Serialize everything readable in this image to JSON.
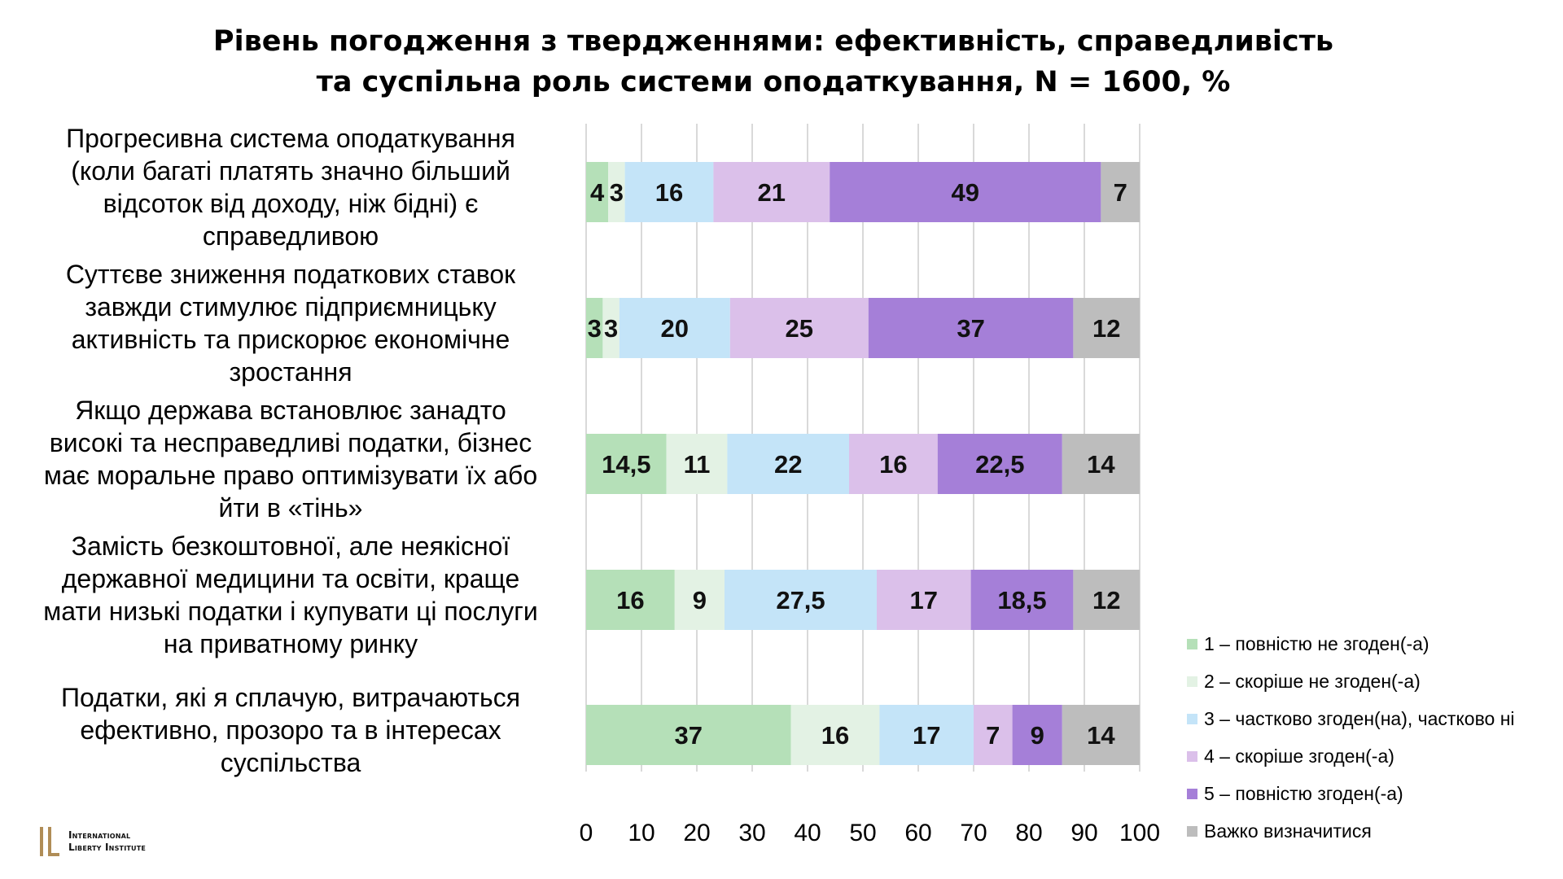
{
  "chart_data": {
    "type": "bar",
    "orientation": "horizontal",
    "stacked": true,
    "title_lines": [
      "Рівень погодження з твердженнями: ефективність, справедливість",
      "та суспільна роль системи оподаткування, N = 1600, %"
    ],
    "categories": [
      [
        "Прогресивна система оподаткування",
        "(коли багаті платять значно більший",
        "відсоток від доходу, ніж бідні) є",
        "справедливою"
      ],
      [
        "Суттєве зниження податкових ставок",
        "завжди стимулює підприємницьку",
        "активність та прискорює економічне",
        "зростання"
      ],
      [
        "Якщо держава встановлює занадто",
        "високі та несправедливі податки, бізнес",
        "має моральне право оптимізувати їх або",
        "йти в «тінь»"
      ],
      [
        "Замість безкоштовної, але неякісної",
        "державної медицини та освіти, краще",
        "мати низькі податки і купувати ці послуги",
        "на приватному ринку"
      ],
      [
        "Податки, які я сплачую, витрачаються",
        "ефективно, прозоро та в інтересах",
        "суспільства"
      ]
    ],
    "series": [
      {
        "name": "1 – повністю не згоден(-а)",
        "color": "#b5e0b8",
        "values": [
          4,
          3,
          14.5,
          16,
          37
        ],
        "labels": [
          "4",
          "3",
          "14,5",
          "16",
          "37"
        ]
      },
      {
        "name": "2 – скоріше не згоден(-а)",
        "color": "#e3f2e4",
        "values": [
          3,
          3,
          11,
          9,
          16
        ],
        "labels": [
          "3",
          "3",
          "11",
          "9",
          "16"
        ]
      },
      {
        "name": "3 – частково згоден(на), частково ні",
        "color": "#c4e4f8",
        "values": [
          16,
          20,
          22,
          27.5,
          17
        ],
        "labels": [
          "16",
          "20",
          "22",
          "27,5",
          "17"
        ]
      },
      {
        "name": "4 – скоріше згоден(-а)",
        "color": "#dbc0ea",
        "values": [
          21,
          25,
          16,
          17,
          7
        ],
        "labels": [
          "21",
          "25",
          "16",
          "17",
          "7"
        ]
      },
      {
        "name": "5 – повністю згоден(-а)",
        "color": "#a57fd8",
        "values": [
          49,
          37,
          22.5,
          18.5,
          9
        ],
        "labels": [
          "49",
          "37",
          "22,5",
          "18,5",
          "9"
        ]
      },
      {
        "name": "Важко визначитися",
        "color": "#bdbdbd",
        "values": [
          7,
          12,
          14,
          12,
          14
        ],
        "labels": [
          "7",
          "12",
          "14",
          "12",
          "14"
        ]
      }
    ],
    "xlim": [
      0,
      100
    ],
    "xticks": [
      "0",
      "10",
      "20",
      "30",
      "40",
      "50",
      "60",
      "70",
      "80",
      "90",
      "100"
    ],
    "grid": true,
    "legend_position": "right-bottom"
  },
  "logo": {
    "line1": "International",
    "line2": "Liberty Institute",
    "color": "#b08d57"
  }
}
